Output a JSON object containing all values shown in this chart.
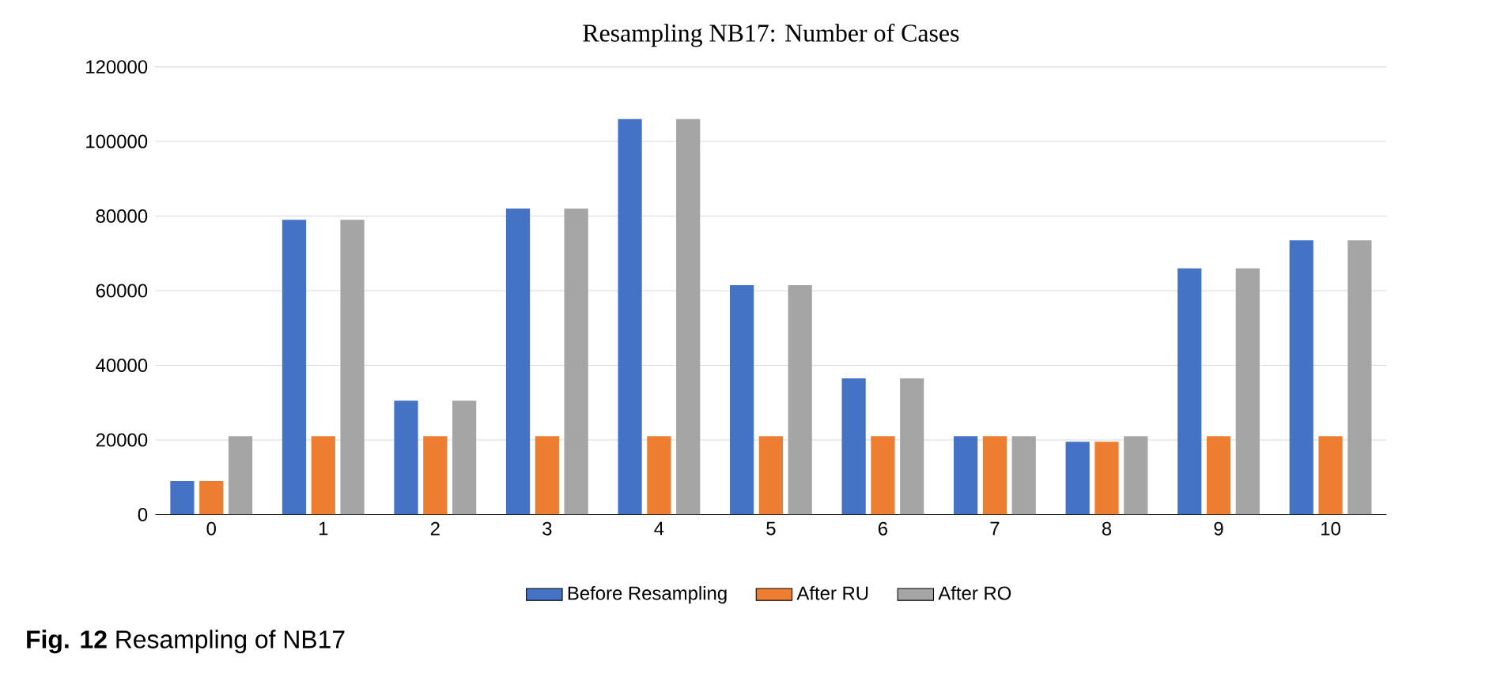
{
  "chart_data": {
    "type": "bar",
    "title": "Resampling NB17: Number of Cases",
    "categories": [
      "0",
      "1",
      "2",
      "3",
      "4",
      "5",
      "6",
      "7",
      "8",
      "9",
      "10"
    ],
    "series": [
      {
        "name": "Before Resampling",
        "color": "#4472c4",
        "values": [
          9000,
          79000,
          30500,
          82000,
          106000,
          61500,
          36500,
          21000,
          19500,
          66000,
          73500
        ]
      },
      {
        "name": "After RU",
        "color": "#ed7d31",
        "values": [
          9000,
          21000,
          21000,
          21000,
          21000,
          21000,
          21000,
          21000,
          19500,
          21000,
          21000
        ]
      },
      {
        "name": "After RO",
        "color": "#a5a5a5",
        "values": [
          21000,
          79000,
          30500,
          82000,
          106000,
          61500,
          36500,
          21000,
          21000,
          66000,
          73500
        ]
      }
    ],
    "ylim": [
      0,
      120000
    ],
    "yticks": [
      0,
      20000,
      40000,
      60000,
      80000,
      100000,
      120000
    ],
    "grid": "y",
    "legend": "bottom",
    "annotations": [
      "**Fig. 12** Resampling of NB17"
    ]
  }
}
